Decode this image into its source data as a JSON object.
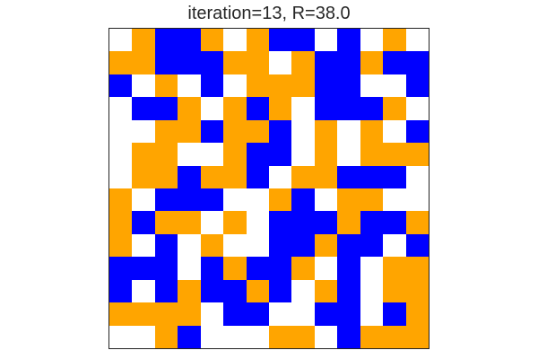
{
  "title": "iteration=13, R=38.0",
  "colors": {
    "W": "#ffffff",
    "O": "#ffa500",
    "B": "#0000ff"
  },
  "grid": [
    "WOBBOWOBBWBWOW",
    "OOBBBOOWOBBOBB",
    "BWOWBWOOOBBWWB",
    "WBBOWOBOWBBBOW",
    "WWOOBOOBWOWOWB",
    "WOOWWOBBWOWOOO",
    "WOOBOOBWOOBBBW",
    "OWBBBWWOBWOOWW",
    "OBOOWOWBBBOBBO",
    "OWBWOWWBBOBBWB",
    "BBBWBOBBOWBWOO",
    "BWBOBBOBWOBWOO",
    "OOOOWBBWWBBWBO",
    "WWOBWWWOOWBOOO"
  ]
}
